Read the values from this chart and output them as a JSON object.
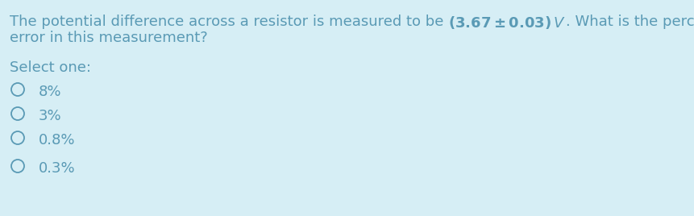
{
  "background_color": "#d6eef5",
  "text_color": "#5a9ab5",
  "question_part1": "The potential difference across a resistor is measured to be ",
  "question_math": "(3.67 ± 0.03) ",
  "question_math_italic": "V",
  "question_part2": ". What is the percentage",
  "question_line2": "error in this measurement?",
  "select_label": "Select one:",
  "options": [
    "8%",
    "3%",
    "0.8%",
    "0.3%"
  ],
  "font_size_question": 13.0,
  "font_size_options": 13.0,
  "font_size_select": 13.0,
  "fig_width": 8.61,
  "fig_height": 2.68,
  "dpi": 100
}
